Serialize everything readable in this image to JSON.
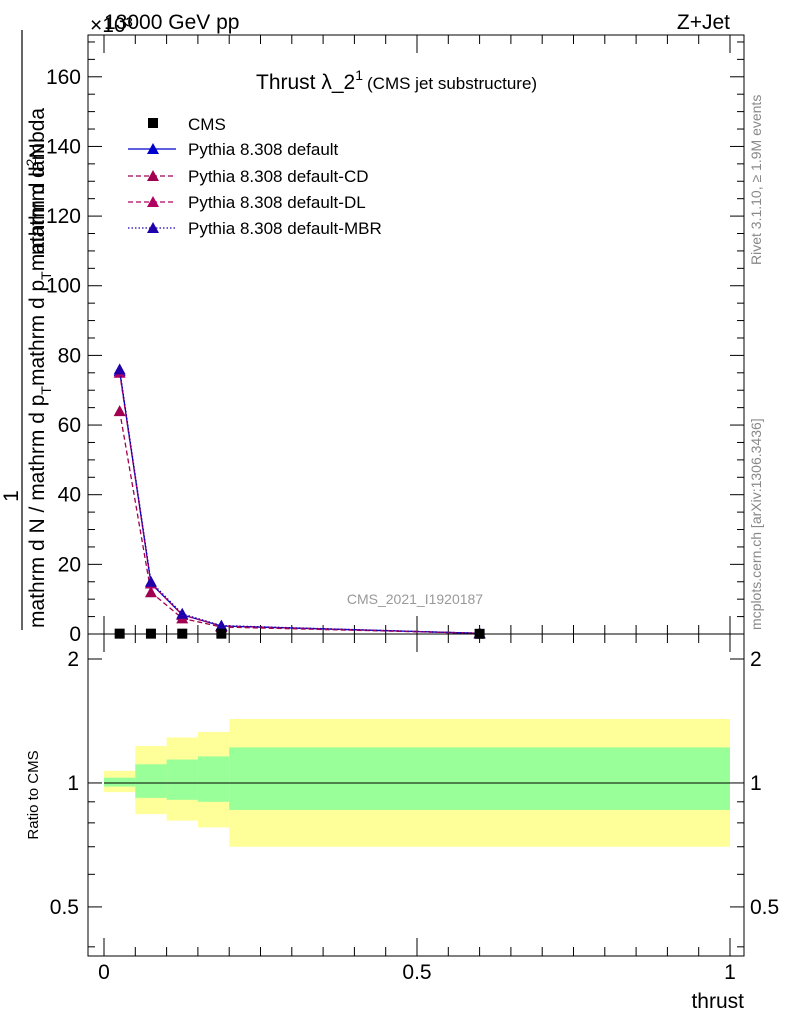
{
  "header": {
    "left": "13000 GeV pp",
    "right": "Z+Jet",
    "exponent": "×10³"
  },
  "title": {
    "main": "Thrust λ_2",
    "sup": "1",
    "sub": "(CMS jet substructure)"
  },
  "side_labels": {
    "rivet": "Rivet 3.1.10, ≥ 1.9M events",
    "mcplots": "mcplots.cern.ch [arXiv:1306.3436]"
  },
  "watermark": "CMS_2021_I1920187",
  "axes": {
    "ylabel_numerator_top": "1",
    "ylabel_numerator": "mathrm d",
    "ylabel_numerator_sup": "2",
    "ylabel_numerator_tail": "N",
    "ylabel_denominator": "mathrm d N / mathrm d p",
    "ylabel_denominator_sub": "T",
    "ylabel_denominator_tail": "mathrm d p",
    "ylabel_denominator_sub2": "T",
    "ylabel_denominator_end": "mathrm d lambda",
    "ratio_ylabel": "Ratio to CMS",
    "xlabel": "thrust"
  },
  "colors": {
    "cms": "#000000",
    "default": "#0000cc",
    "cd": "#a0004f",
    "dl": "#b00060",
    "mbr": "#2000aa",
    "band_inner": "#99ff99",
    "band_outer": "#ffff99"
  },
  "chart_data": [
    {
      "type": "line",
      "panel": "main",
      "xlim": [
        0,
        1
      ],
      "ylim": [
        0,
        172
      ],
      "y_scale_note": "×10³",
      "y_ticks": [
        0,
        20,
        40,
        60,
        80,
        100,
        120,
        140,
        160
      ],
      "y_tick_labels": [
        "0",
        "20",
        "40",
        "60",
        "80",
        "100",
        "120",
        "140",
        "160"
      ],
      "legend_position": "top-left",
      "series": [
        {
          "name": "CMS",
          "style": "square",
          "x": [
            0.025,
            0.075,
            0.125,
            0.1875,
            0.6
          ],
          "values": [
            0.1,
            0.1,
            0.1,
            0.1,
            0.05
          ]
        },
        {
          "name": "Pythia 8.308 default",
          "style": "solid",
          "x": [
            0.025,
            0.075,
            0.125,
            0.1875,
            0.6
          ],
          "values": [
            75.5,
            14.5,
            5.5,
            2.3,
            0.2
          ]
        },
        {
          "name": "Pythia 8.308 default-CD",
          "style": "dashed",
          "x": [
            0.025,
            0.075,
            0.125,
            0.1875,
            0.6
          ],
          "values": [
            64,
            12,
            4.5,
            2.0,
            0.2
          ]
        },
        {
          "name": "Pythia 8.308 default-DL",
          "style": "dashed",
          "x": [
            0.025,
            0.075,
            0.125,
            0.1875,
            0.6
          ],
          "values": [
            75,
            14.5,
            5.5,
            2.3,
            0.2
          ]
        },
        {
          "name": "Pythia 8.308 default-MBR",
          "style": "dotted",
          "x": [
            0.025,
            0.075,
            0.125,
            0.1875,
            0.6
          ],
          "values": [
            76,
            15,
            5.8,
            2.4,
            0.2
          ]
        }
      ]
    },
    {
      "type": "area",
      "panel": "ratio",
      "xlim": [
        0,
        1
      ],
      "ylim": [
        0.38,
        2.3
      ],
      "y_ticks": [
        0.5,
        1,
        2
      ],
      "y_tick_labels": [
        "0.5",
        "1",
        "2"
      ],
      "x_ticks": [
        0,
        0.5,
        1
      ],
      "x_tick_labels": [
        "0",
        "0.5",
        "1"
      ],
      "reference": 1,
      "bins": [
        0,
        0.05,
        0.1,
        0.15,
        0.2,
        1
      ],
      "inner_band": [
        [
          0.98,
          1.03
        ],
        [
          0.92,
          1.11
        ],
        [
          0.91,
          1.14
        ],
        [
          0.9,
          1.16
        ],
        [
          0.86,
          1.22
        ]
      ],
      "outer_band": [
        [
          0.95,
          1.07
        ],
        [
          0.84,
          1.23
        ],
        [
          0.81,
          1.29
        ],
        [
          0.78,
          1.33
        ],
        [
          0.7,
          1.43
        ]
      ]
    }
  ]
}
